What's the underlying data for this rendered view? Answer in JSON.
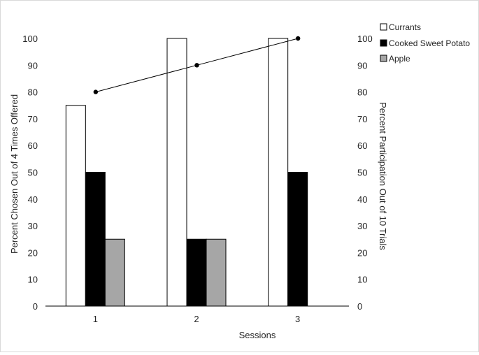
{
  "chart_data": {
    "type": "bar",
    "categories": [
      "1",
      "2",
      "3"
    ],
    "series": [
      {
        "name": "Currants",
        "values": [
          75,
          100,
          100
        ],
        "color": "#ffffff"
      },
      {
        "name": "Cooked Sweet Potato",
        "values": [
          50,
          25,
          50
        ],
        "color": "#000000"
      },
      {
        "name": "Apple",
        "values": [
          25,
          25,
          0
        ],
        "color": "#a6a6a6"
      }
    ],
    "line_series": {
      "name": "Percent Participation",
      "values": [
        80,
        90,
        100
      ],
      "axis": "right"
    },
    "xlabel": "Sessions",
    "ylabel_left": "Percent Chosen Out of 4 Times Offered",
    "ylabel_right": "Percent Participation Out of 10 Trials",
    "ylim": [
      0,
      100
    ],
    "yticks": [
      0,
      10,
      20,
      30,
      40,
      50,
      60,
      70,
      80,
      90,
      100
    ],
    "ylim_right": [
      0,
      100
    ],
    "yticks_right": [
      0,
      10,
      20,
      30,
      40,
      50,
      60,
      70,
      80,
      90,
      100
    ],
    "legend": {
      "position": "top-right"
    },
    "grid": false
  }
}
